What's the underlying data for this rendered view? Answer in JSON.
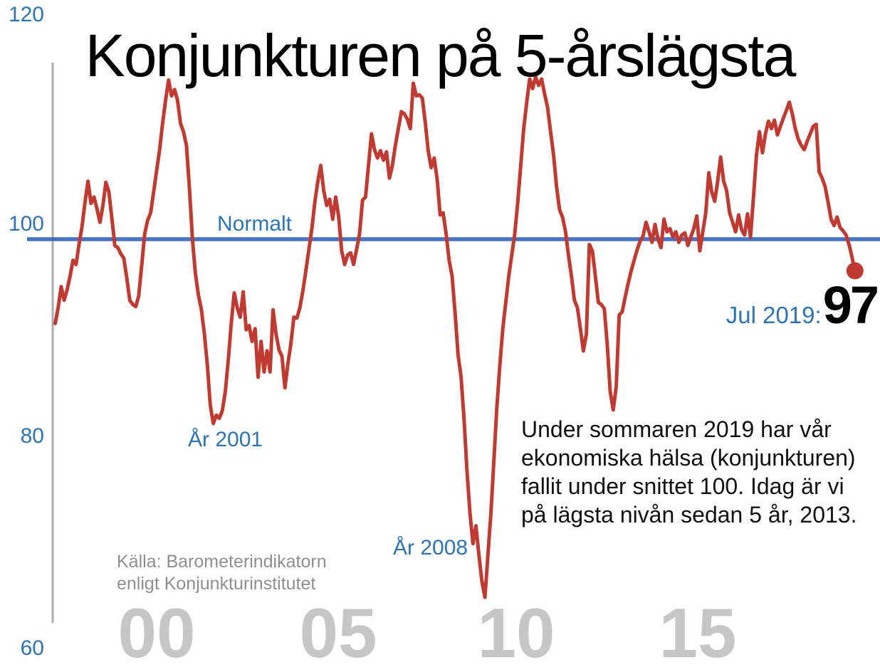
{
  "title": "Konjunkturen på 5-årslägsta",
  "y_axis": {
    "labels": [
      "120",
      "100",
      "80",
      "60"
    ]
  },
  "x_axis": {
    "labels": [
      "00",
      "05",
      "10",
      "15"
    ]
  },
  "reference": {
    "label": "Normalt"
  },
  "annotations": {
    "trough_2001": "År 2001",
    "trough_2008": "År 2008"
  },
  "latest": {
    "label": "Jul 2019:",
    "value": "97"
  },
  "note": {
    "lines": [
      "Under sommaren 2019 har vår",
      "ekonomiska hälsa (konjunkturen)",
      "fallit under snittet 100. Idag är vi",
      "på lägsta nivån sedan 5 år, 2013."
    ]
  },
  "source": {
    "lines": [
      "Källa: Barometerindikatorn",
      "enligt Konjunkturinstitutet"
    ]
  },
  "colors": {
    "line": "#c03a32",
    "reference_line": "#4472c4",
    "blue_text": "#2e74b5",
    "axis": "#ababab",
    "x_label": "#c6c6c6",
    "source_text": "#8f8f8f"
  },
  "chart_data": {
    "type": "line",
    "title": "Konjunkturen på 5-årslägsta",
    "series_name": "Barometerindikatorn (Konjunkturinstitutet)",
    "frequency": "monthly",
    "start_year": 1997,
    "start_month": 3,
    "end_label": "Jul 2019",
    "ylim": [
      60,
      120
    ],
    "y_ticks": [
      120,
      100,
      80,
      60
    ],
    "x_tick_years": [
      2000,
      2005,
      2010,
      2015
    ],
    "x_tick_labels": [
      "00",
      "05",
      "10",
      "15"
    ],
    "reference_value": 100,
    "latest_value": 97,
    "values": [
      92,
      93.5,
      95.5,
      94.2,
      95.2,
      96.5,
      98,
      97.6,
      99.5,
      101.2,
      103.5,
      105.5,
      103.4,
      104,
      102.9,
      101.6,
      103.2,
      105.4,
      104.5,
      102,
      99.4,
      99.2,
      98.6,
      98.2,
      96.3,
      94.2,
      93.8,
      93.6,
      94.6,
      97.5,
      100.5,
      101.8,
      102.5,
      104.5,
      106.5,
      108.5,
      111,
      113.2,
      115.1,
      113.6,
      114.2,
      113.2,
      111,
      110.2,
      108.9,
      104.8,
      100,
      96.7,
      94.7,
      93.3,
      91,
      88,
      84.2,
      82.5,
      83.3,
      83,
      83.7,
      85.5,
      88.5,
      92,
      94.9,
      93.5,
      92.6,
      95,
      91.4,
      91.8,
      90.3,
      91.5,
      86.9,
      90.3,
      87.4,
      89.4,
      87.4,
      93.3,
      91,
      89.5,
      88.9,
      85.9,
      88.2,
      90.1,
      92.6,
      92.5,
      93.5,
      95.1,
      97,
      99,
      101,
      103.5,
      105.5,
      107,
      104.6,
      103.2,
      103.8,
      101.9,
      104,
      102.1,
      98.9,
      97.6,
      98.5,
      98.7,
      97.6,
      99,
      100.5,
      103.7,
      104,
      107,
      110,
      108.5,
      107.7,
      108.4,
      107.5,
      108.3,
      105.8,
      107,
      108.9,
      110.5,
      112.1,
      111.9,
      111.4,
      110.5,
      114.8,
      113.6,
      113.7,
      113.4,
      111.1,
      108.4,
      106.8,
      107.7,
      105.7,
      102.3,
      102.5,
      100.5,
      98,
      96.5,
      93,
      89,
      87,
      83,
      78,
      74,
      71.1,
      72.8,
      70,
      67.5,
      66,
      70,
      74,
      79,
      84,
      88,
      91.5,
      94,
      96.5,
      98.5,
      100.5,
      103.5,
      107,
      110.5,
      113,
      115.2,
      114.3,
      115.4,
      114.6,
      115.2,
      113.8,
      112.5,
      110.2,
      108,
      105,
      102.8,
      102.1,
      100.7,
      98.5,
      96.5,
      94.2,
      93.5,
      91.5,
      89.4,
      91,
      99.5,
      98.9,
      96.5,
      94,
      93.8,
      93.4,
      90,
      85.5,
      83.8,
      86,
      92.8,
      93.1,
      94.5,
      95.8,
      97,
      98,
      99,
      99.8,
      100.3,
      101.6,
      100.7,
      99.7,
      101.4,
      100,
      99.2,
      101.9,
      100.7,
      101,
      100.2,
      100.7,
      99.7,
      100.4,
      100.6,
      99.4,
      100.2,
      101,
      102.2,
      98.9,
      100.7,
      102.5,
      106.3,
      104.5,
      103.6,
      105.5,
      107.8,
      105.5,
      104.6,
      102.5,
      101.6,
      100.7,
      102.3,
      100.9,
      100.4,
      102.4,
      100.2,
      104,
      108,
      110.2,
      108.2,
      110,
      111.2,
      110.5,
      111.3,
      109.9,
      110.7,
      111.5,
      112.2,
      113,
      111.9,
      110.5,
      109.5,
      108.9,
      108.5,
      109.3,
      110,
      110.7,
      110.9,
      106.4,
      105.8,
      105,
      103.5,
      101.9,
      101.3,
      102.1,
      101.1,
      100.8,
      100.4,
      99.5,
      98.3,
      97
    ]
  }
}
